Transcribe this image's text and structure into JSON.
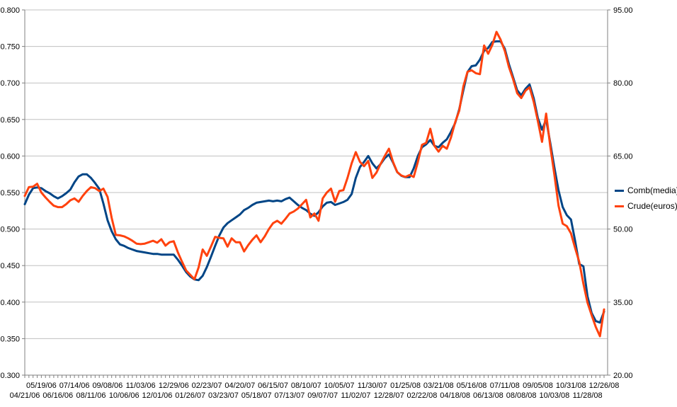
{
  "chart_data": {
    "type": "line",
    "title": "",
    "x_description": "weekly data, 141 points from 04/21/06 to 12/26/08",
    "grid": true,
    "legend_position": "right-middle",
    "left_axis": {
      "min": 0.3,
      "max": 0.8,
      "step": 0.05,
      "tick_labels": [
        "0.800",
        "0.750",
        "0.700",
        "0.650",
        "0.600",
        "0.550",
        "0.500",
        "0.450",
        "0.400",
        "0.350",
        "0.300"
      ]
    },
    "right_axis": {
      "min": 20.0,
      "max": 95.0,
      "step": 15.0,
      "tick_labels": [
        "95.00",
        "80.00",
        "65.00",
        "50.00",
        "35.00",
        "20.00"
      ]
    },
    "x_tick_labels_upper_row": [
      "05/19/06",
      "07/14/06",
      "09/08/06",
      "11/03/06",
      "12/29/06",
      "02/23/07",
      "04/20/07",
      "06/15/07",
      "08/10/07",
      "10/05/07",
      "11/30/07",
      "01/25/08",
      "03/21/08",
      "05/16/08",
      "07/11/08",
      "09/05/08",
      "10/31/08",
      "12/26/08"
    ],
    "x_tick_labels_lower_row": [
      "04/21/06",
      "06/16/06",
      "08/11/06",
      "10/06/06",
      "12/01/06",
      "01/26/07",
      "03/23/07",
      "05/18/07",
      "07/13/07",
      "09/07/07",
      "11/02/07",
      "12/28/07",
      "02/22/08",
      "04/18/08",
      "06/13/08",
      "08/08/08",
      "10/03/08",
      "11/28/08"
    ],
    "series": [
      {
        "name": "Comb(media)",
        "axis": "left",
        "color": "#004586",
        "values": [
          0.534,
          0.547,
          0.556,
          0.557,
          0.556,
          0.552,
          0.549,
          0.545,
          0.542,
          0.545,
          0.549,
          0.554,
          0.564,
          0.572,
          0.575,
          0.575,
          0.57,
          0.563,
          0.555,
          0.535,
          0.512,
          0.497,
          0.486,
          0.479,
          0.477,
          0.474,
          0.472,
          0.47,
          0.469,
          0.468,
          0.467,
          0.466,
          0.466,
          0.465,
          0.465,
          0.465,
          0.465,
          0.458,
          0.45,
          0.441,
          0.435,
          0.431,
          0.43,
          0.436,
          0.448,
          0.462,
          0.477,
          0.491,
          0.502,
          0.508,
          0.512,
          0.516,
          0.52,
          0.526,
          0.529,
          0.533,
          0.536,
          0.537,
          0.538,
          0.539,
          0.538,
          0.539,
          0.538,
          0.541,
          0.543,
          0.538,
          0.533,
          0.529,
          0.526,
          0.521,
          0.518,
          0.523,
          0.531,
          0.536,
          0.537,
          0.533,
          0.535,
          0.537,
          0.54,
          0.548,
          0.57,
          0.585,
          0.592,
          0.6,
          0.59,
          0.583,
          0.589,
          0.597,
          0.602,
          0.591,
          0.578,
          0.573,
          0.571,
          0.571,
          0.583,
          0.6,
          0.612,
          0.616,
          0.622,
          0.614,
          0.612,
          0.618,
          0.623,
          0.633,
          0.645,
          0.664,
          0.69,
          0.715,
          0.723,
          0.724,
          0.732,
          0.744,
          0.748,
          0.756,
          0.757,
          0.757,
          0.747,
          0.726,
          0.708,
          0.69,
          0.683,
          0.692,
          0.698,
          0.679,
          0.652,
          0.636,
          0.65,
          0.618,
          0.584,
          0.553,
          0.53,
          0.519,
          0.513,
          0.484,
          0.452,
          0.449,
          0.408,
          0.385,
          0.374,
          0.372,
          0.387
        ]
      },
      {
        "name": "Crude(euros)",
        "axis": "right",
        "color": "#FF420E",
        "values": [
          56.8,
          58.6,
          58.7,
          59.3,
          57.5,
          56.5,
          55.6,
          54.8,
          54.5,
          54.5,
          55.1,
          55.9,
          56.3,
          55.6,
          56.8,
          57.8,
          58.6,
          58.4,
          57.8,
          58.3,
          56.6,
          52.3,
          48.8,
          48.7,
          48.5,
          48.1,
          47.6,
          47.0,
          46.9,
          47.0,
          47.3,
          47.6,
          47.2,
          47.9,
          46.6,
          47.3,
          47.5,
          45.2,
          43.3,
          41.5,
          40.6,
          39.7,
          42.1,
          45.8,
          44.5,
          46.4,
          48.4,
          48.2,
          48.1,
          46.4,
          48.1,
          47.3,
          47.3,
          45.4,
          46.7,
          47.8,
          48.7,
          47.3,
          48.5,
          50.0,
          51.2,
          51.7,
          51.1,
          52.1,
          53.2,
          53.6,
          54.2,
          55.1,
          56.0,
          52.4,
          53.2,
          51.7,
          56.3,
          57.5,
          58.3,
          55.6,
          57.8,
          58.0,
          60.5,
          63.5,
          65.8,
          63.8,
          62.9,
          64.0,
          60.5,
          61.6,
          63.4,
          65.0,
          66.5,
          63.8,
          61.7,
          61.0,
          60.7,
          61.1,
          60.7,
          63.8,
          67.3,
          67.7,
          70.6,
          67.1,
          65.9,
          67.1,
          66.5,
          68.8,
          71.9,
          74.3,
          79.3,
          82.3,
          82.6,
          82.0,
          81.8,
          87.7,
          86.0,
          87.8,
          90.5,
          88.9,
          86.6,
          83.3,
          80.8,
          77.9,
          76.9,
          78.4,
          79.1,
          76.1,
          72.2,
          67.9,
          73.7,
          67.0,
          61.1,
          54.8,
          51.1,
          50.6,
          49.1,
          46.1,
          43.3,
          38.8,
          34.9,
          32.3,
          29.9,
          28.0,
          33.5
        ]
      }
    ]
  },
  "legend": {
    "items": [
      {
        "label": "Comb(media)",
        "color": "#004586"
      },
      {
        "label": "Crude(euros)",
        "color": "#FF420E"
      }
    ]
  },
  "colors": {
    "background": "#FFFFFF",
    "gridline": "#C0C0C0",
    "axis": "#808080",
    "tick_text": "#000000"
  }
}
